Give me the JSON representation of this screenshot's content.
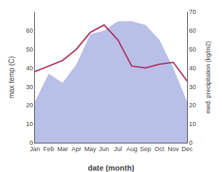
{
  "chart_data": {
    "type": "line",
    "categories": [
      "Jan",
      "Feb",
      "Mar",
      "Apr",
      "May",
      "Jun",
      "Jul",
      "Aug",
      "Sep",
      "Oct",
      "Nov",
      "Dec"
    ],
    "xlabel": "date (month)",
    "ylabel": "max temp (C)",
    "y2label": "med. precipitation (kg/m2)",
    "series": [
      {
        "type": "line",
        "color": "#b03060",
        "values": [
          38,
          41,
          44,
          50,
          59,
          63,
          55,
          41,
          40,
          42,
          43,
          33
        ]
      },
      {
        "type": "area",
        "color": "#b8c0e8",
        "axis": "y2",
        "values": [
          22,
          37,
          32,
          42,
          58,
          60,
          65,
          65,
          63,
          55,
          40,
          22
        ]
      }
    ],
    "ylim": [
      0,
      70
    ],
    "yticks": [
      0,
      10,
      20,
      30,
      40,
      50,
      60
    ],
    "y2lim": [
      0,
      70
    ],
    "y2ticks": [
      0,
      10,
      20,
      30,
      40,
      50,
      60,
      70
    ],
    "grid": false
  }
}
